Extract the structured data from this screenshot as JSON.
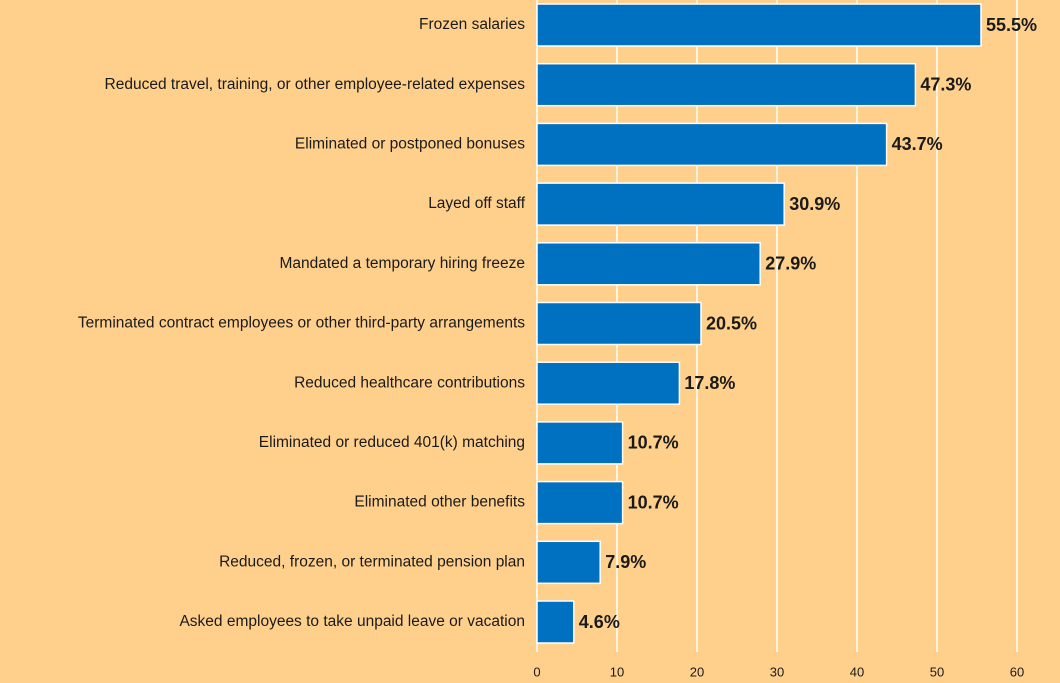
{
  "chart_data": {
    "type": "hbar",
    "categories": [
      "Frozen salaries",
      "Reduced travel, training, or other employee-related expenses",
      "Eliminated or postponed bonuses",
      "Layed off staff",
      "Mandated a temporary hiring freeze",
      "Terminated contract employees or other third-party arrangements",
      "Reduced healthcare contributions",
      "Eliminated or reduced 401(k) matching",
      "Eliminated other benefits",
      "Reduced, frozen, or terminated pension plan",
      "Asked employees to take unpaid leave or vacation"
    ],
    "values": [
      55.5,
      47.3,
      43.7,
      30.9,
      27.9,
      20.5,
      17.8,
      10.7,
      10.7,
      7.9,
      4.6
    ],
    "value_labels": [
      "55.5%",
      "47.3%",
      "43.7%",
      "30.9%",
      "27.9%",
      "20.5%",
      "17.8%",
      "10.7%",
      "10.7%",
      "7.9%",
      "4.6%"
    ],
    "color": "#0070c0",
    "xlim": [
      0,
      60
    ],
    "xticks": [
      0,
      10,
      20,
      30,
      40,
      50,
      60
    ],
    "grid": true
  }
}
